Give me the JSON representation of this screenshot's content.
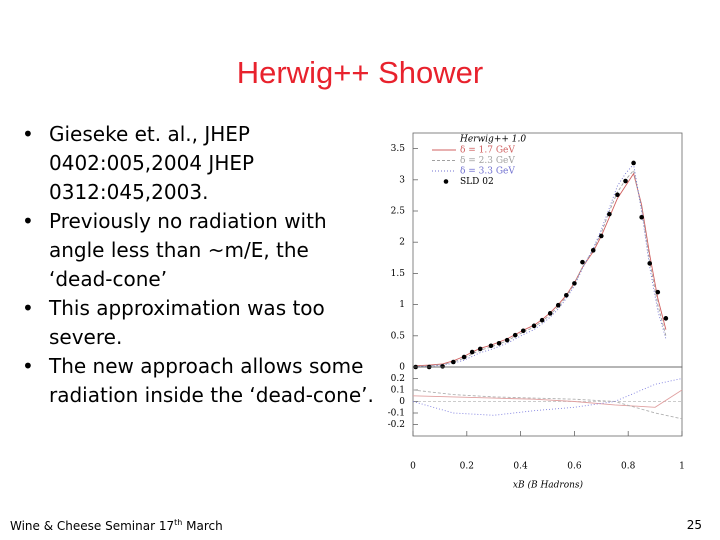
{
  "title": "Herwig++ Shower",
  "bullets": [
    "Gieseke et. al., JHEP 0402:005,2004 JHEP 0312:045,2003.",
    "Previously no radiation with angle less than ~m/E, the ‘dead-cone’",
    "This approximation was too severe.",
    "The new approach allows some radiation inside the ‘dead-cone’."
  ],
  "footer": {
    "text": "Wine & Cheese Seminar 17",
    "superscript": "th",
    "text_after": " March",
    "page": "25"
  },
  "chart_data": [
    {
      "type": "line",
      "legend_title": "Herwig++ 1.0",
      "xlabel": "xB (B Hadrons)",
      "x": [
        0.01,
        0.06,
        0.11,
        0.15,
        0.19,
        0.22,
        0.25,
        0.29,
        0.32,
        0.35,
        0.38,
        0.41,
        0.45,
        0.48,
        0.51,
        0.54,
        0.57,
        0.6,
        0.63,
        0.67,
        0.7,
        0.73,
        0.76,
        0.79,
        0.82,
        0.85,
        0.88,
        0.91,
        0.94
      ],
      "xlim": [
        0,
        1
      ],
      "xticks": [
        0,
        0.2,
        0.4,
        0.6,
        0.8,
        1
      ],
      "ylim": [
        0,
        3.75
      ],
      "yticks": [
        0,
        0.5,
        1,
        1.5,
        2,
        2.5,
        3,
        3.5
      ],
      "series": [
        {
          "name": "δ = 1.7 GeV",
          "color": "#d06060",
          "style": "line",
          "values": [
            0.02,
            0.03,
            0.05,
            0.1,
            0.17,
            0.24,
            0.3,
            0.35,
            0.4,
            0.45,
            0.52,
            0.59,
            0.67,
            0.76,
            0.87,
            1.0,
            1.15,
            1.35,
            1.6,
            1.85,
            2.1,
            2.4,
            2.7,
            2.9,
            3.1,
            2.6,
            1.8,
            1.1,
            0.6
          ]
        },
        {
          "name": "δ = 2.3 GeV",
          "color": "#a0a0a0",
          "style": "line",
          "values": [
            0.01,
            0.02,
            0.04,
            0.08,
            0.14,
            0.21,
            0.27,
            0.32,
            0.37,
            0.42,
            0.49,
            0.56,
            0.64,
            0.73,
            0.84,
            0.97,
            1.13,
            1.33,
            1.6,
            1.88,
            2.15,
            2.5,
            2.8,
            3.0,
            3.15,
            2.55,
            1.7,
            1.0,
            0.5
          ]
        },
        {
          "name": "δ = 3.3 GeV",
          "color": "#7070d0",
          "style": "line",
          "values": [
            0.01,
            0.01,
            0.03,
            0.06,
            0.11,
            0.17,
            0.23,
            0.28,
            0.33,
            0.38,
            0.45,
            0.52,
            0.6,
            0.69,
            0.8,
            0.93,
            1.1,
            1.3,
            1.58,
            1.9,
            2.2,
            2.55,
            2.9,
            3.1,
            3.25,
            2.5,
            1.6,
            0.9,
            0.45
          ]
        },
        {
          "name": "SLD 02",
          "color": "#000000",
          "style": "points",
          "values": [
            0,
            0,
            0.01,
            0.08,
            0.16,
            0.24,
            0.29,
            0.34,
            0.38,
            0.43,
            0.51,
            0.58,
            0.66,
            0.75,
            0.86,
            0.99,
            1.15,
            1.34,
            1.68,
            1.87,
            2.1,
            2.45,
            2.76,
            2.98,
            3.27,
            2.4,
            1.66,
            1.2,
            0.78
          ]
        }
      ]
    },
    {
      "type": "line",
      "x": [
        0,
        0.15,
        0.3,
        0.45,
        0.6,
        0.75,
        0.9,
        1
      ],
      "xlim": [
        0,
        1
      ],
      "ylim": [
        -0.3,
        0.3
      ],
      "yticks": [
        0.2,
        0.1,
        0,
        -0.1,
        -0.2
      ],
      "series": [
        {
          "color": "#e0a0a0",
          "values": [
            0.05,
            0.04,
            0.03,
            0.02,
            0,
            -0.03,
            -0.05,
            0.1
          ]
        },
        {
          "color": "#b0b0b0",
          "values": [
            0.1,
            0.06,
            0.04,
            0.03,
            0.02,
            0,
            -0.1,
            -0.15
          ]
        },
        {
          "color": "#8080e0",
          "values": [
            0,
            -0.1,
            -0.12,
            -0.08,
            -0.05,
            0,
            0.15,
            0.2
          ]
        }
      ]
    }
  ]
}
